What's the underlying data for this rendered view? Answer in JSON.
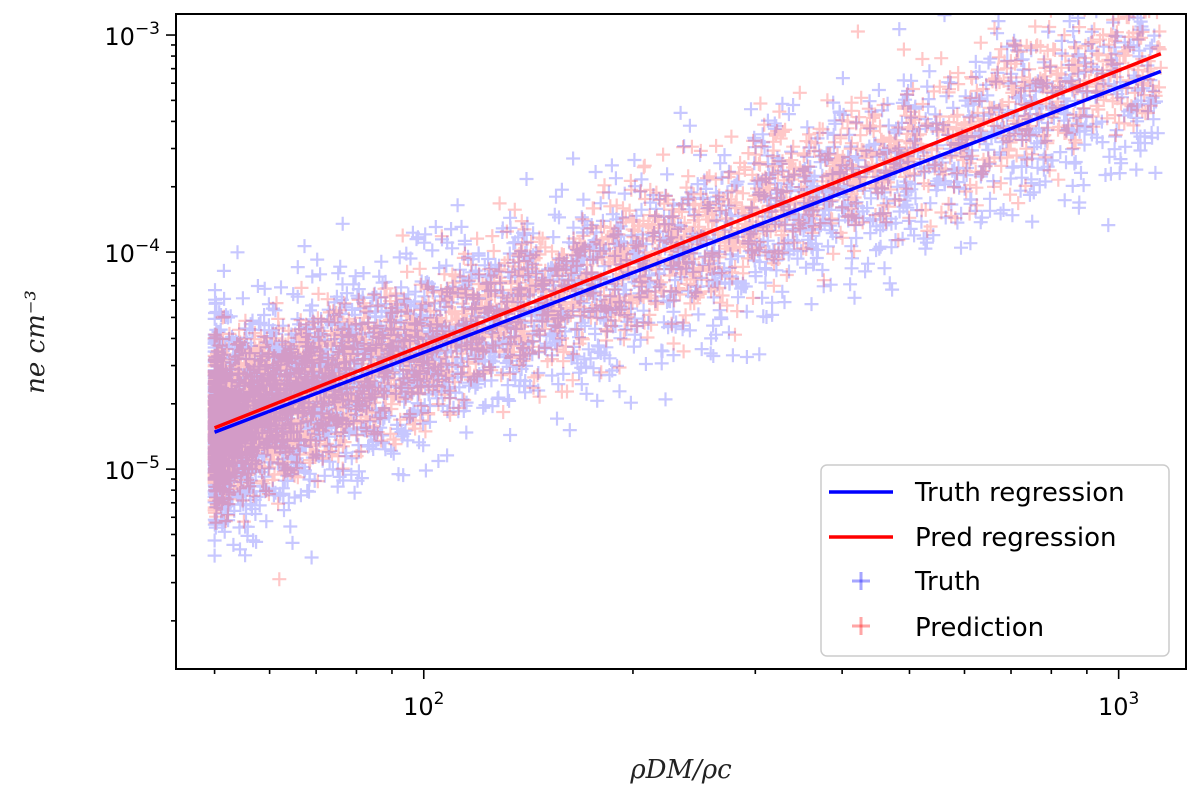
{
  "chart_data": {
    "type": "scatter",
    "xscale": "log",
    "yscale": "log",
    "xlim": [
      44,
      1250
    ],
    "ylim": [
      1.2e-06,
      0.00125
    ],
    "xlabel": "ρDM/ρc",
    "ylabel": "ne  cm⁻³",
    "x_ticks": [
      {
        "value": 100,
        "base": "10",
        "exp": "2"
      },
      {
        "value": 1000,
        "base": "10",
        "exp": "3"
      }
    ],
    "y_ticks": [
      {
        "value": 1e-05,
        "base": "10",
        "exp": "−5"
      },
      {
        "value": 0.0001,
        "base": "10",
        "exp": "−4"
      },
      {
        "value": 0.001,
        "base": "10",
        "exp": "−3"
      }
    ],
    "legend_position": "lower-right",
    "series": [
      {
        "name": "Truth",
        "kind": "scatter",
        "marker": "+",
        "color": "#0000ff",
        "alpha": 0.22,
        "x_range": [
          50,
          1150
        ],
        "fit_intercept_at_x50": 1.48e-05,
        "slope": 1.22,
        "scatter_dex": 0.22
      },
      {
        "name": "Prediction",
        "kind": "scatter",
        "marker": "+",
        "color": "#ff0000",
        "alpha": 0.22,
        "x_range": [
          50,
          1150
        ],
        "fit_intercept_at_x50": 1.55e-05,
        "slope": 1.27,
        "scatter_dex": 0.17
      },
      {
        "name": "Truth regression",
        "kind": "line",
        "color": "#0000ff",
        "x": [
          50,
          1150
        ],
        "y": [
          1.48e-05,
          0.00068
        ]
      },
      {
        "name": "Pred regression",
        "kind": "line",
        "color": "#ff0000",
        "x": [
          50,
          1150
        ],
        "y": [
          1.55e-05,
          0.00082
        ]
      }
    ],
    "legend": [
      {
        "label": "Truth regression",
        "kind": "line",
        "color": "#0000ff"
      },
      {
        "label": "Pred regression",
        "kind": "line",
        "color": "#ff0000"
      },
      {
        "label": "Truth",
        "kind": "marker",
        "color": "#0000ff"
      },
      {
        "label": "Prediction",
        "kind": "marker",
        "color": "#ff0000"
      }
    ]
  }
}
